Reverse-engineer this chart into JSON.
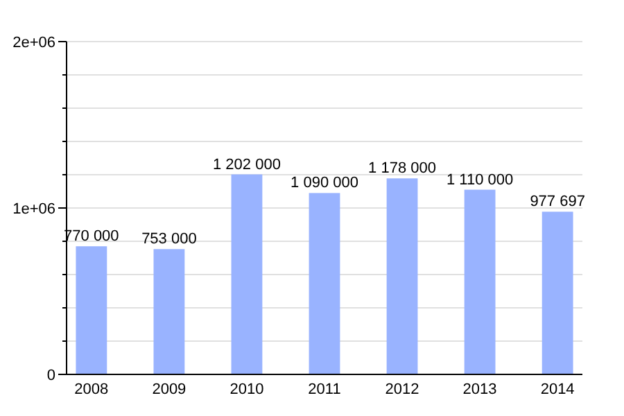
{
  "chart_data": {
    "type": "bar",
    "categories": [
      "2008",
      "2009",
      "2010",
      "2011",
      "2012",
      "2013",
      "2014"
    ],
    "values": [
      770000,
      753000,
      1202000,
      1090000,
      1178000,
      1110000,
      977697
    ],
    "value_labels": [
      "770 000",
      "753 000",
      "1 202 000",
      "1 090 000",
      "1 178 000",
      "1 110 000",
      "977 697"
    ],
    "color": "#99b3ff",
    "ylim": [
      0,
      2000000
    ],
    "yticks": [
      0,
      {
        "value": 200000,
        "label": null
      },
      {
        "value": 400000,
        "label": null
      },
      {
        "value": 600000,
        "label": null
      },
      {
        "value": 800000,
        "label": null
      },
      {
        "value": 1000000,
        "label": "1e+06"
      },
      {
        "value": 1200000,
        "label": null
      },
      {
        "value": 1400000,
        "label": null
      },
      {
        "value": 1600000,
        "label": null
      },
      {
        "value": 1800000,
        "label": null
      },
      {
        "value": 2000000,
        "label": "2e+06"
      }
    ],
    "grid": "y"
  }
}
